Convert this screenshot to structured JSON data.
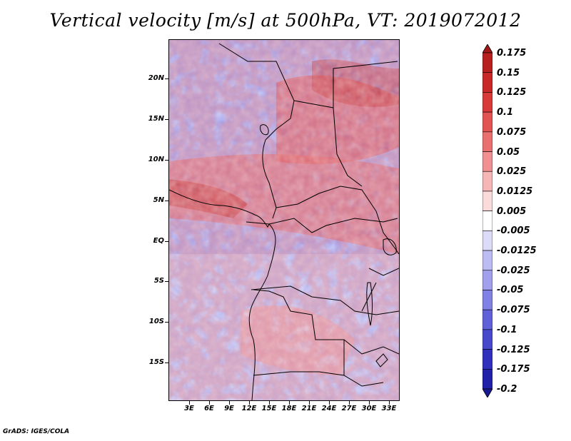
{
  "title": "Vertical velocity [m/s] at 500hPa, VT: 2019072012",
  "credit": "GrADS: IGES/COLA",
  "map": {
    "projection": "lat-lon",
    "variable": "vertical velocity",
    "units": "m/s",
    "level": "500hPa",
    "lon_range": [
      0,
      34
    ],
    "lat_range": [
      -20,
      24
    ]
  },
  "lat_labels": [
    "20N",
    "15N",
    "10N",
    "5N",
    "EQ",
    "5S",
    "10S",
    "15S"
  ],
  "lon_labels": [
    "3E",
    "6E",
    "9E",
    "12E",
    "15E",
    "18E",
    "21E",
    "24E",
    "27E",
    "30E",
    "33E"
  ],
  "colorbar": {
    "labels": [
      "0.175",
      "0.15",
      "0.125",
      "0.1",
      "0.075",
      "0.05",
      "0.025",
      "0.0125",
      "0.005",
      "-0.005",
      "-0.0125",
      "-0.025",
      "-0.05",
      "-0.075",
      "-0.1",
      "-0.125",
      "-0.175",
      "-0.2"
    ],
    "colors": [
      "#a01818",
      "#b82020",
      "#c82828",
      "#d83a3a",
      "#e25454",
      "#ea7070",
      "#f19090",
      "#f7b6b6",
      "#fbdada",
      "#ffffff",
      "#dcdcf8",
      "#bcbcf2",
      "#a0a0ec",
      "#8080e6",
      "#6060d8",
      "#4848cc",
      "#3030bc",
      "#2020a8",
      "#181890"
    ]
  }
}
